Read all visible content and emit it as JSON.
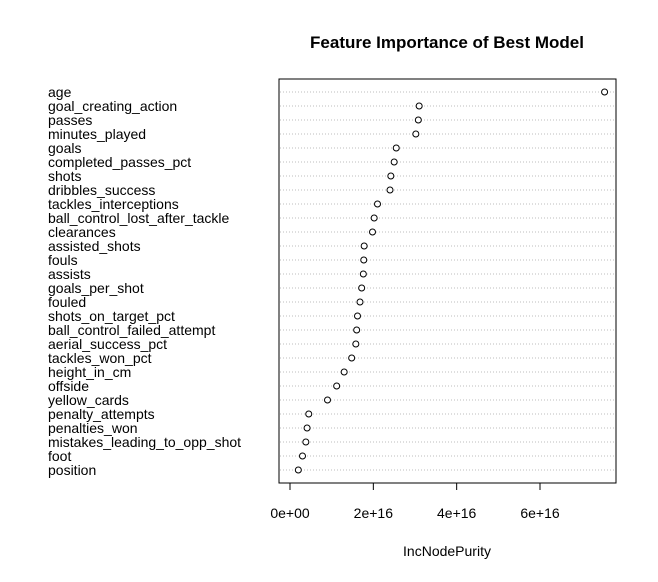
{
  "chart_data": {
    "type": "scatter",
    "title": "Feature Importance of Best Model",
    "xlabel": "IncNodePurity",
    "ylabel": "",
    "xlim": [
      -2000000000000000.0,
      7.8e+16
    ],
    "x_ticks": [
      0,
      2e+16,
      4e+16,
      6e+16
    ],
    "x_tick_labels": [
      "0e+00",
      "2e+16",
      "4e+16",
      "6e+16"
    ],
    "grid": "dotted horizontal guide per feature",
    "features": [
      {
        "name": "age",
        "value": 7.55e+16
      },
      {
        "name": "goal_creating_action",
        "value": 3.1e+16
      },
      {
        "name": "passes",
        "value": 3.08e+16
      },
      {
        "name": "minutes_played",
        "value": 3.02e+16
      },
      {
        "name": "goals",
        "value": 2.55e+16
      },
      {
        "name": "completed_passes_pct",
        "value": 2.5e+16
      },
      {
        "name": "shots",
        "value": 2.42e+16
      },
      {
        "name": "dribbles_success",
        "value": 2.4e+16
      },
      {
        "name": "tackles_interceptions",
        "value": 2.1e+16
      },
      {
        "name": "ball_control_lost_after_tackle",
        "value": 2.02e+16
      },
      {
        "name": "clearances",
        "value": 1.98e+16
      },
      {
        "name": "assisted_shots",
        "value": 1.78e+16
      },
      {
        "name": "fouls",
        "value": 1.77e+16
      },
      {
        "name": "assists",
        "value": 1.76e+16
      },
      {
        "name": "goals_per_shot",
        "value": 1.72e+16
      },
      {
        "name": "fouled",
        "value": 1.68e+16
      },
      {
        "name": "shots_on_target_pct",
        "value": 1.62e+16
      },
      {
        "name": "ball_control_failed_attempt",
        "value": 1.6e+16
      },
      {
        "name": "aerial_success_pct",
        "value": 1.58e+16
      },
      {
        "name": "tackles_won_pct",
        "value": 1.48e+16
      },
      {
        "name": "height_in_cm",
        "value": 1.3e+16
      },
      {
        "name": "offside",
        "value": 1.12e+16
      },
      {
        "name": "yellow_cards",
        "value": 9000000000000000.0
      },
      {
        "name": "penalty_attempts",
        "value": 4500000000000000.0
      },
      {
        "name": "penalties_won",
        "value": 4100000000000000.0
      },
      {
        "name": "mistakes_leading_to_opp_shot",
        "value": 3800000000000000.0
      },
      {
        "name": "foot",
        "value": 3000000000000000.0
      },
      {
        "name": "position",
        "value": 2000000000000000.0
      }
    ]
  }
}
